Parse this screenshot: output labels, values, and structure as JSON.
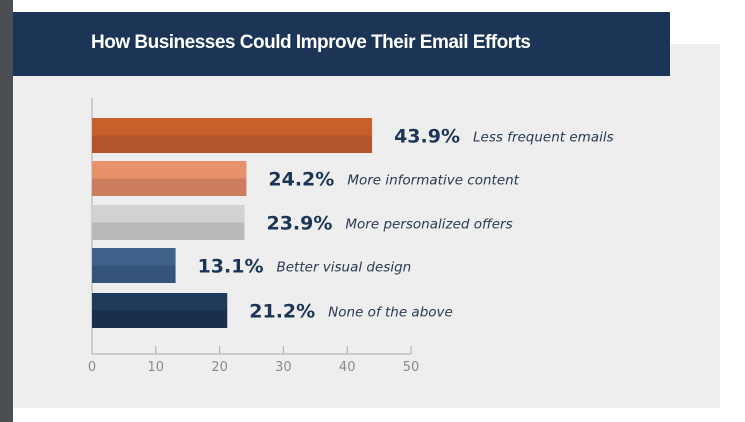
{
  "chart_data": {
    "type": "bar",
    "orientation": "horizontal",
    "title": "How Businesses Could Improve Their Email Efforts",
    "categories": [
      "Less frequent emails",
      "More informative content",
      "More personalized offers",
      "Better visual design",
      "None of the above"
    ],
    "values": [
      43.9,
      24.2,
      23.9,
      13.1,
      21.2
    ],
    "value_labels": [
      "43.9%",
      "24.2%",
      "23.9%",
      "13.1%",
      "21.2%"
    ],
    "colors": [
      [
        "#c9602b",
        "#b3552a"
      ],
      [
        "#e8916b",
        "#cc7d5d"
      ],
      [
        "#d2d2d2",
        "#b9b9b9"
      ],
      [
        "#40618a",
        "#35547b"
      ],
      [
        "#1f3a5b",
        "#1a2f4e"
      ]
    ],
    "xlim": [
      0,
      50
    ],
    "xticks": [
      "0",
      "10",
      "20",
      "30",
      "40",
      "50"
    ],
    "xlabel": "",
    "ylabel": "",
    "grid": false
  }
}
